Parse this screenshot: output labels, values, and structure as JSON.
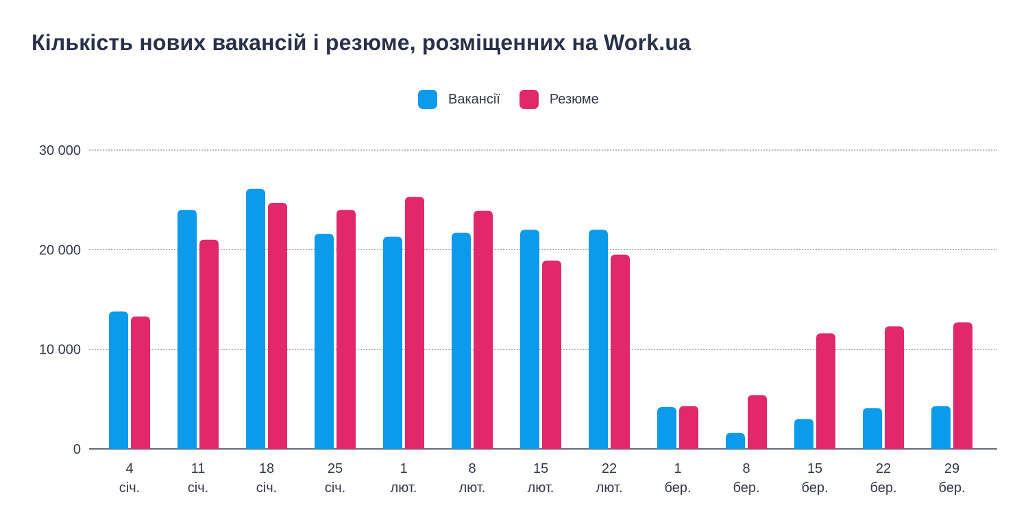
{
  "chart_data": {
    "type": "bar",
    "title": "Кількість нових вакансій і резюме, розміщенних на Work.ua",
    "xlabel": "",
    "ylabel": "",
    "ylim": [
      0,
      30000
    ],
    "yticks": [
      {
        "value": 0,
        "label": "0"
      },
      {
        "value": 10000,
        "label": "10 000"
      },
      {
        "value": 20000,
        "label": "20 000"
      },
      {
        "value": 30000,
        "label": "30 000"
      }
    ],
    "grid": true,
    "legend_position": "top-center",
    "categories": [
      {
        "day": "4",
        "month": "січ."
      },
      {
        "day": "11",
        "month": "січ."
      },
      {
        "day": "18",
        "month": "січ."
      },
      {
        "day": "25",
        "month": "січ."
      },
      {
        "day": "1",
        "month": "лют."
      },
      {
        "day": "8",
        "month": "лют."
      },
      {
        "day": "15",
        "month": "лют."
      },
      {
        "day": "22",
        "month": "лют."
      },
      {
        "day": "1",
        "month": "бер."
      },
      {
        "day": "8",
        "month": "бер."
      },
      {
        "day": "15",
        "month": "бер."
      },
      {
        "day": "22",
        "month": "бер."
      },
      {
        "day": "29",
        "month": "бер."
      }
    ],
    "series": [
      {
        "name": "Вакансії",
        "color": "#0c9aea",
        "values": [
          13800,
          24000,
          26100,
          21600,
          21300,
          21700,
          22000,
          22000,
          4200,
          1600,
          3000,
          4100,
          4300
        ]
      },
      {
        "name": "Резюме",
        "color": "#e0286a",
        "values": [
          13300,
          21000,
          24700,
          24000,
          25300,
          23900,
          18900,
          19500,
          4300,
          5400,
          11600,
          12300,
          12700
        ]
      }
    ]
  }
}
